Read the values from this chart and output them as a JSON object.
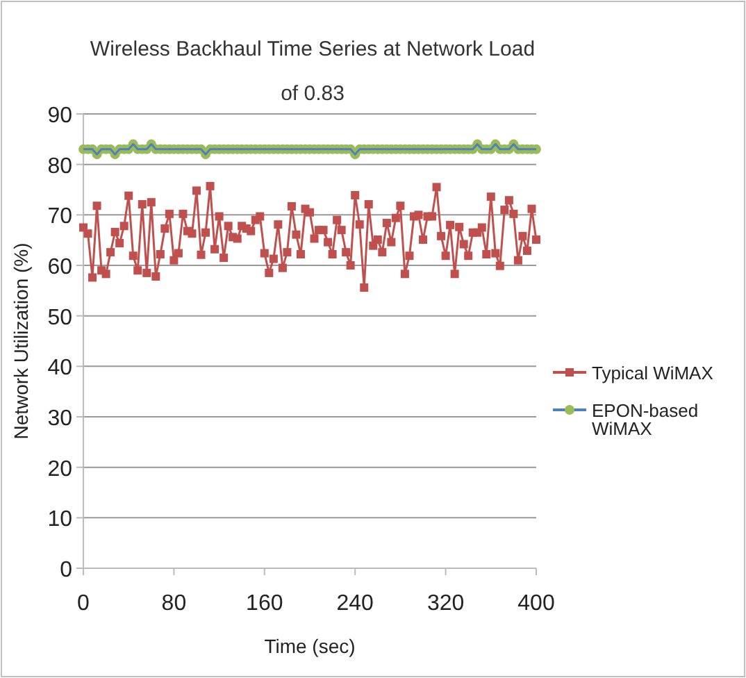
{
  "chart_data": {
    "type": "line",
    "title": "Wireless Backhaul Time Series at Network Load of 0.83",
    "xlabel": "Time (sec)",
    "ylabel": "Network Utilization (%)",
    "x": [
      0,
      4,
      8,
      12,
      16,
      20,
      24,
      28,
      32,
      36,
      40,
      44,
      48,
      52,
      56,
      60,
      64,
      68,
      72,
      76,
      80,
      84,
      88,
      92,
      96,
      100,
      104,
      108,
      112,
      116,
      120,
      124,
      128,
      132,
      136,
      140,
      144,
      148,
      152,
      156,
      160,
      164,
      168,
      172,
      176,
      180,
      184,
      188,
      192,
      196,
      200,
      204,
      208,
      212,
      216,
      220,
      224,
      228,
      232,
      236,
      240,
      244,
      248,
      252,
      256,
      260,
      264,
      268,
      272,
      276,
      280,
      284,
      288,
      292,
      296,
      300,
      304,
      308,
      312,
      316,
      320,
      324,
      328,
      332,
      336,
      340,
      344,
      348,
      352,
      356,
      360,
      364,
      368,
      372,
      376,
      380,
      384,
      388,
      392,
      396,
      400
    ],
    "xlim": [
      0,
      400
    ],
    "xticks": [
      0,
      80,
      160,
      240,
      320,
      400
    ],
    "ylim": [
      0,
      90
    ],
    "yticks": [
      0,
      10,
      20,
      30,
      40,
      50,
      60,
      70,
      80,
      90
    ],
    "grid": "y",
    "legend": "right",
    "series": [
      {
        "name": "Typical WiMAX",
        "color": "#c0504d",
        "marker": "square",
        "values": [
          67.5,
          66.3,
          57.6,
          71.8,
          59,
          58.3,
          62.6,
          66.6,
          64.4,
          67.8,
          73.8,
          61.9,
          59,
          72.1,
          58.5,
          72.5,
          57.8,
          62.2,
          67.3,
          70.2,
          61,
          62.4,
          70.2,
          66.8,
          66.3,
          74.8,
          62.1,
          66.5,
          75.7,
          63.2,
          69.7,
          61.5,
          67.8,
          65.6,
          65.3,
          67.8,
          67.3,
          66.8,
          69,
          69.7,
          62.4,
          58.5,
          61.3,
          68.1,
          59.5,
          62.6,
          71.7,
          66.1,
          62.2,
          71.2,
          70.5,
          65.3,
          67,
          67,
          64.6,
          62.2,
          69,
          67,
          62.6,
          60,
          73.9,
          68.1,
          55.6,
          72.1,
          63.9,
          65.1,
          62.6,
          68.4,
          64.6,
          69.4,
          71.8,
          58.3,
          61.9,
          69.7,
          70,
          65.1,
          69.7,
          69.7,
          75.5,
          65.8,
          61.9,
          68,
          58.3,
          67.6,
          64.2,
          61.9,
          66.5,
          66.5,
          67.5,
          62.2,
          73.6,
          62.4,
          59.9,
          71,
          72.9,
          70.2,
          61,
          65.8,
          62.9,
          71.2,
          65.1
        ]
      },
      {
        "name": "EPON-based WiMAX",
        "color": "#4f81bd",
        "marker": "circle",
        "colors": [
          "#9bbb59",
          "#9bbb59",
          "#9bbb59",
          "#9bbb59",
          "#9bbb59",
          "#9bbb59",
          "#9bbb59",
          "#9bbb59",
          "#9bbb59",
          "#9bbb59",
          "#9bbb59",
          "#9bbb59",
          "#9bbb59",
          "#9bbb59",
          "#9bbb59",
          "#9bbb59",
          "#9bbb59",
          "#9bbb59",
          "#9bbb59",
          "#9bbb59",
          "#9bbb59",
          "#9bbb59",
          "#9bbb59",
          "#9bbb59",
          "#9bbb59",
          "#9bbb59",
          "#9bbb59",
          "#9bbb59",
          "#9bbb59",
          "#9bbb59",
          "#9bbb59",
          "#9bbb59",
          "#9bbb59",
          "#9bbb59",
          "#9bbb59",
          "#9bbb59",
          "#9bbb59",
          "#9bbb59",
          "#9bbb59",
          "#9bbb59",
          "#9bbb59",
          "#9bbb59",
          "#9bbb59",
          "#9bbb59",
          "#9bbb59",
          "#9bbb59",
          "#9bbb59",
          "#9bbb59",
          "#9bbb59",
          "#9bbb59",
          "#9bbb59",
          "#9bbb59",
          "#9bbb59",
          "#9bbb59",
          "#9bbb59",
          "#9bbb59",
          "#9bbb59",
          "#9bbb59",
          "#9bbb59",
          "#9bbb59",
          "#9bbb59",
          "#9bbb59",
          "#9bbb59",
          "#9bbb59",
          "#9bbb59",
          "#9bbb59",
          "#9bbb59",
          "#9bbb59",
          "#9bbb59",
          "#9bbb59",
          "#9bbb59",
          "#9bbb59",
          "#9bbb59",
          "#9bbb59",
          "#9bbb59",
          "#9bbb59",
          "#9bbb59",
          "#9bbb59",
          "#9bbb59",
          "#9bbb59",
          "#9bbb59",
          "#9bbb59",
          "#9bbb59",
          "#9bbb59",
          "#9bbb59",
          "#9bbb59",
          "#9bbb59",
          "#9bbb59",
          "#9bbb59",
          "#9bbb59",
          "#9bbb59",
          "#9bbb59",
          "#9bbb59",
          "#9bbb59",
          "#9bbb59",
          "#9bbb59",
          "#9bbb59",
          "#9bbb59",
          "#9bbb59",
          "#9bbb59",
          "#9bbb59"
        ],
        "values": [
          83,
          83,
          83,
          82,
          83,
          83,
          83,
          82,
          83,
          83,
          83,
          84,
          83,
          83,
          83,
          84,
          83,
          83,
          83,
          83,
          83,
          83,
          83,
          83,
          83,
          83,
          83,
          82,
          83,
          83,
          83,
          83,
          83,
          83,
          83,
          83,
          83,
          83,
          83,
          83,
          83,
          83,
          83,
          83,
          83,
          83,
          83,
          83,
          83,
          83,
          83,
          83,
          83,
          83,
          83,
          83,
          83,
          83,
          83,
          83,
          82,
          83,
          83,
          83,
          83,
          83,
          83,
          83,
          83,
          83,
          83,
          83,
          83,
          83,
          83,
          83,
          83,
          83,
          83,
          83,
          83,
          83,
          83,
          83,
          83,
          83,
          83,
          84,
          83,
          83,
          83,
          84,
          83,
          83,
          83,
          84,
          83,
          83,
          83,
          83,
          83
        ]
      }
    ]
  }
}
